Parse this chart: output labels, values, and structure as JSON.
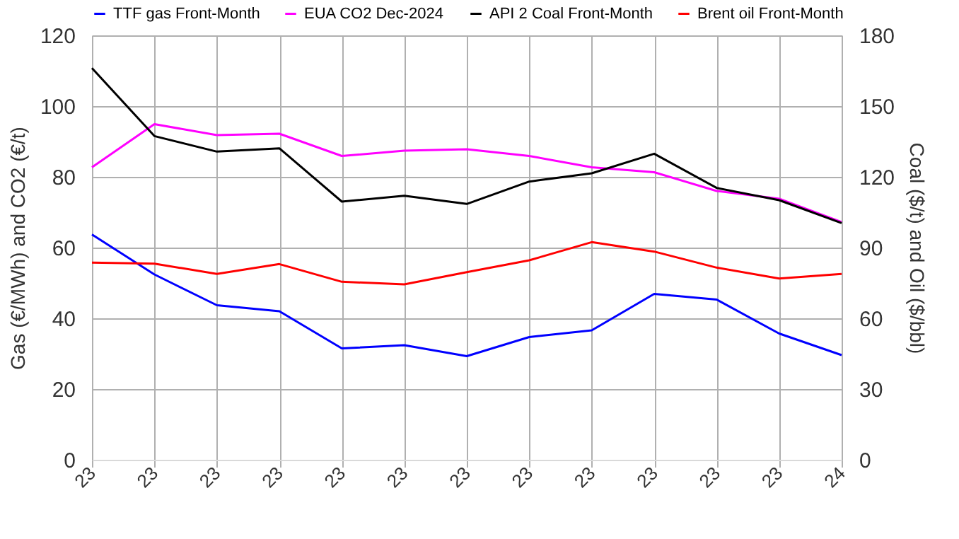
{
  "chart_data": {
    "type": "line",
    "ylabel": "Gas (€/MWh) and CO2 (€/t)",
    "y2label": "Coal ($/t) and Oil ($/bbl)",
    "categories": [
      "23",
      "23",
      "23",
      "23",
      "23",
      "23",
      "23",
      "23",
      "23",
      "23",
      "23",
      "23",
      "24"
    ],
    "series": [
      {
        "name": "TTF gas Front-Month",
        "color": "#0000ff",
        "values": [
          63.7,
          52.4,
          43.7,
          42.0,
          31.5,
          32.4,
          29.3,
          34.7,
          36.6,
          46.9,
          45.3,
          35.7,
          29.6
        ]
      },
      {
        "name": "EUA CO2 Dec-2024",
        "color": "#ff00ff",
        "values": [
          82.7,
          94.9,
          91.8,
          92.2,
          85.9,
          87.4,
          87.8,
          85.9,
          82.7,
          81.3,
          76.0,
          73.8,
          67.2
        ]
      },
      {
        "name": "API 2 Coal Front-Month",
        "color": "#000000",
        "axis": "y2",
        "values": [
          166.1,
          137.3,
          130.7,
          132.1,
          109.5,
          112.0,
          108.5,
          118.0,
          121.5,
          129.8,
          115.3,
          110.1,
          100.4
        ]
      },
      {
        "name": "Brent oil Front-Month",
        "color": "#ff0000",
        "axis": "y2",
        "values": [
          83.6,
          83.2,
          78.8,
          83.0,
          75.5,
          74.4,
          79.6,
          84.6,
          92.3,
          88.3,
          81.5,
          76.9,
          78.8
        ]
      }
    ],
    "ylim": [
      0,
      120
    ],
    "yticks": [
      0,
      20,
      40,
      60,
      80,
      100,
      120
    ],
    "y2lim": [
      0,
      180
    ],
    "y2ticks": [
      0,
      30,
      60,
      90,
      120,
      150,
      180
    ],
    "grid": true,
    "legend": "top",
    "marker": "none",
    "line_style": "solid"
  }
}
